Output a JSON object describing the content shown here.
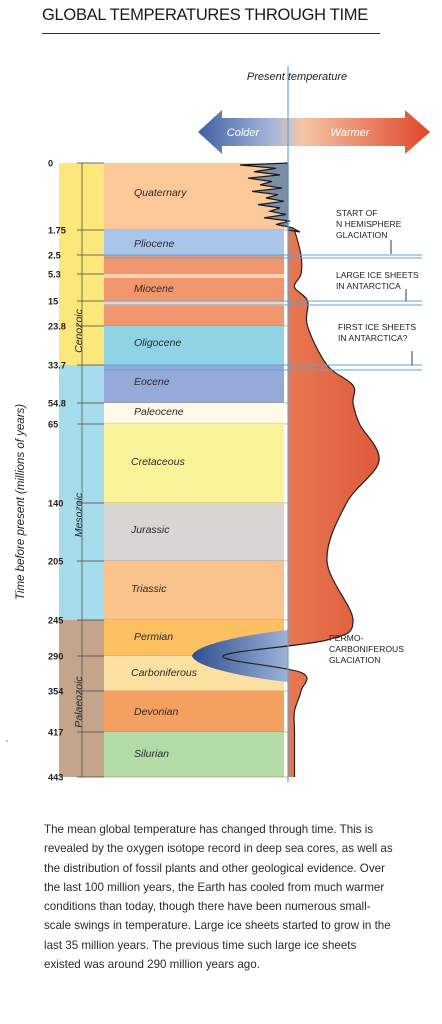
{
  "title": "GLOBAL TEMPERATURES THROUGH TIME",
  "caption": "The mean global temperature has changed through time. This is revealed by the oxygen isotope record in deep sea cores, as well as the distribution of fossil plants and other geological evidence. Over the last 100 million years, the Earth has cooled from much warmer conditions than today, though there have been numerous small-scale swings in temperature. Large ice sheets started to grow in the last 35 million years. The previous time such large ice sheets existed was around 290 million years ago.",
  "present_temperature_label": "Present temperature",
  "arrows": {
    "colder": "Colder",
    "warmer": "Warmer"
  },
  "colors": {
    "cenozoic": "#fbe77a",
    "mesozoic": "#a7dcec",
    "palaeozoic": "#c4a48a",
    "warm_fill": "#e46a4b",
    "cold_fill": "#6e8fb8",
    "line": "#5aa3d8"
  },
  "chart_data": {
    "type": "area",
    "title": "GLOBAL TEMPERATURES THROUGH TIME",
    "ylabel": "Time before present (millions of years)",
    "y_axis_ticks": [
      "0",
      "1.75",
      "2.5",
      "5.3",
      "15",
      "23.8",
      "33.7",
      "54.8",
      "65",
      "140",
      "205",
      "245",
      "290",
      "354",
      "417",
      "443"
    ],
    "eras": [
      {
        "name": "Cenozoic",
        "color": "#fbe77a"
      },
      {
        "name": "Mesozoic",
        "color": "#a7dcec"
      },
      {
        "name": "Palaeozoic",
        "color": "#c4a48a"
      }
    ],
    "periods": [
      {
        "name": "Quaternary",
        "color": "#fbc999"
      },
      {
        "name": "Pliocene",
        "color": "#a9c6ea"
      },
      {
        "name": "Miocene",
        "color": "#f2976d"
      },
      {
        "name": "Oligocene",
        "color": "#8fd3e4"
      },
      {
        "name": "Eocene",
        "color": "#95aad8"
      },
      {
        "name": "Paleocene",
        "color": "#fff9e6"
      },
      {
        "name": "Cretaceous",
        "color": "#f8f298"
      },
      {
        "name": "Jurassic",
        "color": "#d7d6d3"
      },
      {
        "name": "Triassic",
        "color": "#fbc38c"
      },
      {
        "name": "Permian",
        "color": "#fbc060"
      },
      {
        "name": "Carboniferous",
        "color": "#fce0a1"
      },
      {
        "name": "Devonian",
        "color": "#f4a060"
      },
      {
        "name": "Silurian",
        "color": "#b3dba6"
      }
    ],
    "annotations": [
      {
        "text": [
          "START OF",
          "N HEMISPHERE",
          "GLACIATION"
        ]
      },
      {
        "text": [
          "LARGE ICE SHEETS",
          "IN ANTARCTICA"
        ]
      },
      {
        "text": [
          "FIRST ICE SHEETS",
          "IN ANTARCTICA?"
        ]
      },
      {
        "text": [
          "PERMO-",
          "CARBONIFEROUS",
          "GLACIATION"
        ]
      }
    ],
    "temperature_anomaly_points": [
      {
        "age": 0,
        "t": -1
      },
      {
        "age": 1,
        "t": -2
      },
      {
        "age": 1.75,
        "t": 0.5
      },
      {
        "age": 2.5,
        "t": 1
      },
      {
        "age": 5.3,
        "t": 1
      },
      {
        "age": 10,
        "t": 0.5
      },
      {
        "age": 15,
        "t": 1.5
      },
      {
        "age": 23.8,
        "t": 1.5
      },
      {
        "age": 33.7,
        "t": 3
      },
      {
        "age": 45,
        "t": 5
      },
      {
        "age": 54.8,
        "t": 5
      },
      {
        "age": 65,
        "t": 5.5
      },
      {
        "age": 100,
        "t": 7
      },
      {
        "age": 140,
        "t": 4.5
      },
      {
        "age": 205,
        "t": 3
      },
      {
        "age": 245,
        "t": 5
      },
      {
        "age": 270,
        "t": 3
      },
      {
        "age": 290,
        "t": -5
      },
      {
        "age": 320,
        "t": 1
      },
      {
        "age": 354,
        "t": 1
      },
      {
        "age": 385,
        "t": 0.5
      },
      {
        "age": 417,
        "t": 0.5
      },
      {
        "age": 443,
        "t": 0.5
      }
    ]
  }
}
